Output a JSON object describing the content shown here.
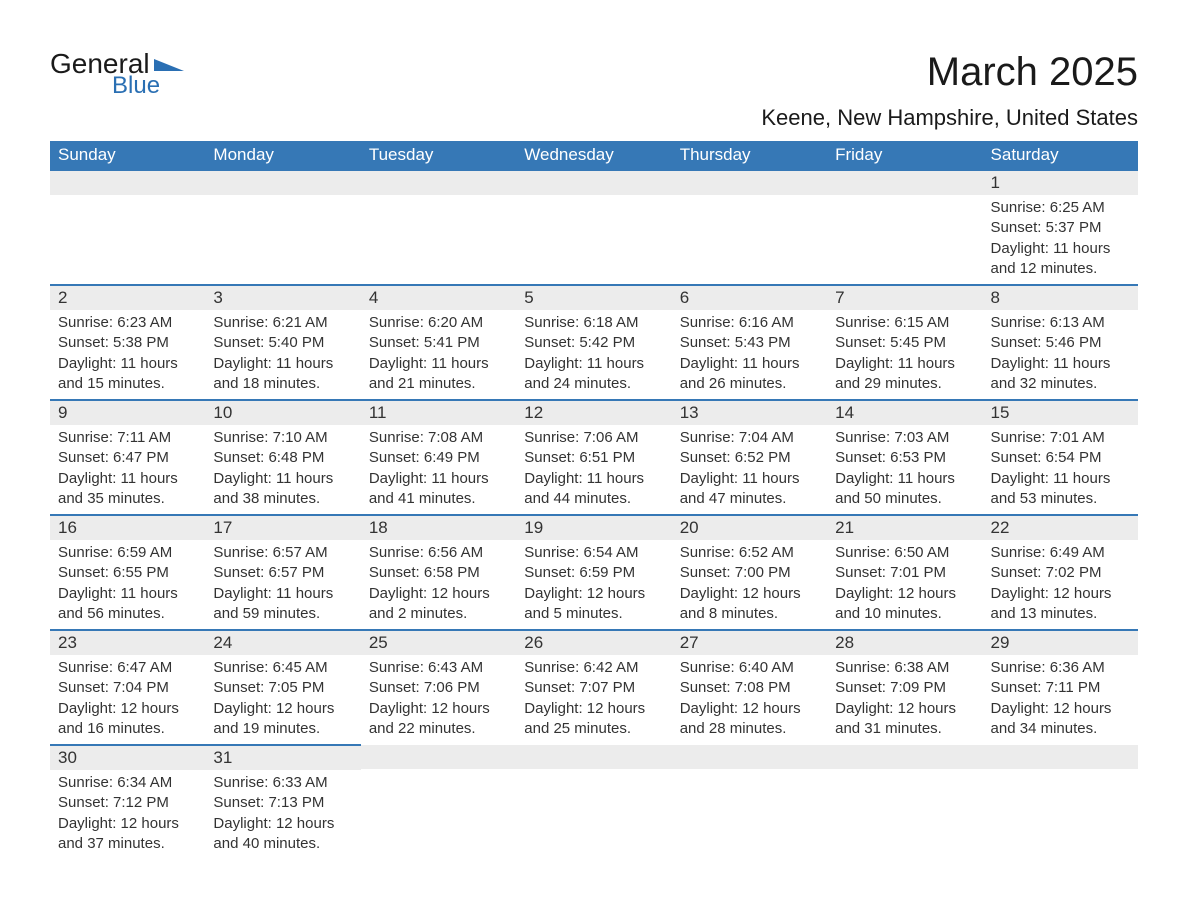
{
  "logo": {
    "text_general": "General",
    "text_blue": "Blue",
    "shape_color": "#2a6fb3"
  },
  "title": {
    "month": "March 2025",
    "location": "Keene, New Hampshire, United States"
  },
  "colors": {
    "header_bg": "#3678b6",
    "header_text": "#ffffff",
    "daynum_bg": "#ececec",
    "border": "#3678b6",
    "text": "#333333",
    "background": "#ffffff"
  },
  "typography": {
    "month_fontsize": 40,
    "location_fontsize": 22,
    "header_fontsize": 17,
    "daynum_fontsize": 17,
    "body_fontsize": 15,
    "font_family": "Arial"
  },
  "weekdays": [
    "Sunday",
    "Monday",
    "Tuesday",
    "Wednesday",
    "Thursday",
    "Friday",
    "Saturday"
  ],
  "weeks": [
    [
      null,
      null,
      null,
      null,
      null,
      null,
      {
        "n": "1",
        "sr": "6:25 AM",
        "ss": "5:37 PM",
        "dl": "11 hours and 12 minutes."
      }
    ],
    [
      {
        "n": "2",
        "sr": "6:23 AM",
        "ss": "5:38 PM",
        "dl": "11 hours and 15 minutes."
      },
      {
        "n": "3",
        "sr": "6:21 AM",
        "ss": "5:40 PM",
        "dl": "11 hours and 18 minutes."
      },
      {
        "n": "4",
        "sr": "6:20 AM",
        "ss": "5:41 PM",
        "dl": "11 hours and 21 minutes."
      },
      {
        "n": "5",
        "sr": "6:18 AM",
        "ss": "5:42 PM",
        "dl": "11 hours and 24 minutes."
      },
      {
        "n": "6",
        "sr": "6:16 AM",
        "ss": "5:43 PM",
        "dl": "11 hours and 26 minutes."
      },
      {
        "n": "7",
        "sr": "6:15 AM",
        "ss": "5:45 PM",
        "dl": "11 hours and 29 minutes."
      },
      {
        "n": "8",
        "sr": "6:13 AM",
        "ss": "5:46 PM",
        "dl": "11 hours and 32 minutes."
      }
    ],
    [
      {
        "n": "9",
        "sr": "7:11 AM",
        "ss": "6:47 PM",
        "dl": "11 hours and 35 minutes."
      },
      {
        "n": "10",
        "sr": "7:10 AM",
        "ss": "6:48 PM",
        "dl": "11 hours and 38 minutes."
      },
      {
        "n": "11",
        "sr": "7:08 AM",
        "ss": "6:49 PM",
        "dl": "11 hours and 41 minutes."
      },
      {
        "n": "12",
        "sr": "7:06 AM",
        "ss": "6:51 PM",
        "dl": "11 hours and 44 minutes."
      },
      {
        "n": "13",
        "sr": "7:04 AM",
        "ss": "6:52 PM",
        "dl": "11 hours and 47 minutes."
      },
      {
        "n": "14",
        "sr": "7:03 AM",
        "ss": "6:53 PM",
        "dl": "11 hours and 50 minutes."
      },
      {
        "n": "15",
        "sr": "7:01 AM",
        "ss": "6:54 PM",
        "dl": "11 hours and 53 minutes."
      }
    ],
    [
      {
        "n": "16",
        "sr": "6:59 AM",
        "ss": "6:55 PM",
        "dl": "11 hours and 56 minutes."
      },
      {
        "n": "17",
        "sr": "6:57 AM",
        "ss": "6:57 PM",
        "dl": "11 hours and 59 minutes."
      },
      {
        "n": "18",
        "sr": "6:56 AM",
        "ss": "6:58 PM",
        "dl": "12 hours and 2 minutes."
      },
      {
        "n": "19",
        "sr": "6:54 AM",
        "ss": "6:59 PM",
        "dl": "12 hours and 5 minutes."
      },
      {
        "n": "20",
        "sr": "6:52 AM",
        "ss": "7:00 PM",
        "dl": "12 hours and 8 minutes."
      },
      {
        "n": "21",
        "sr": "6:50 AM",
        "ss": "7:01 PM",
        "dl": "12 hours and 10 minutes."
      },
      {
        "n": "22",
        "sr": "6:49 AM",
        "ss": "7:02 PM",
        "dl": "12 hours and 13 minutes."
      }
    ],
    [
      {
        "n": "23",
        "sr": "6:47 AM",
        "ss": "7:04 PM",
        "dl": "12 hours and 16 minutes."
      },
      {
        "n": "24",
        "sr": "6:45 AM",
        "ss": "7:05 PM",
        "dl": "12 hours and 19 minutes."
      },
      {
        "n": "25",
        "sr": "6:43 AM",
        "ss": "7:06 PM",
        "dl": "12 hours and 22 minutes."
      },
      {
        "n": "26",
        "sr": "6:42 AM",
        "ss": "7:07 PM",
        "dl": "12 hours and 25 minutes."
      },
      {
        "n": "27",
        "sr": "6:40 AM",
        "ss": "7:08 PM",
        "dl": "12 hours and 28 minutes."
      },
      {
        "n": "28",
        "sr": "6:38 AM",
        "ss": "7:09 PM",
        "dl": "12 hours and 31 minutes."
      },
      {
        "n": "29",
        "sr": "6:36 AM",
        "ss": "7:11 PM",
        "dl": "12 hours and 34 minutes."
      }
    ],
    [
      {
        "n": "30",
        "sr": "6:34 AM",
        "ss": "7:12 PM",
        "dl": "12 hours and 37 minutes."
      },
      {
        "n": "31",
        "sr": "6:33 AM",
        "ss": "7:13 PM",
        "dl": "12 hours and 40 minutes."
      },
      null,
      null,
      null,
      null,
      null
    ]
  ],
  "labels": {
    "sunrise": "Sunrise: ",
    "sunset": "Sunset: ",
    "daylight": "Daylight: "
  }
}
